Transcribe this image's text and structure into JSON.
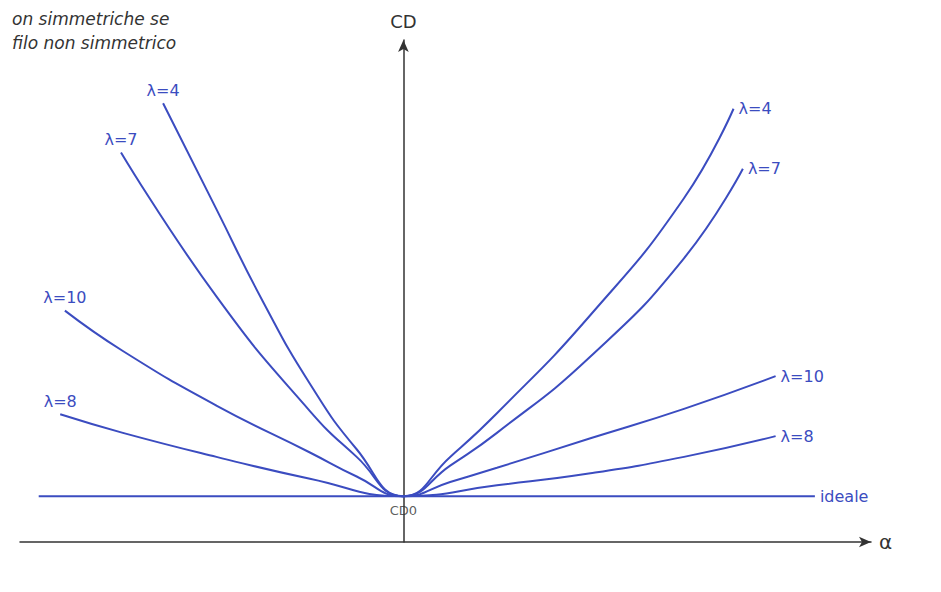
{
  "chart_data": {
    "type": "line",
    "x_label": "α",
    "y_label": "CD",
    "annotations": [
      "on simmetriche se",
      "filo non simmetrico",
      "CD0"
    ],
    "xlim": [
      -41,
      50
    ],
    "ylim": [
      0,
      46
    ],
    "xticks": [],
    "yticks": [],
    "tick_labels": false,
    "grid": false,
    "series": [
      {
        "name": "λ=4",
        "color": "#3b4cc0",
        "x": [
          -25.7,
          -20,
          -15,
          -10,
          -5,
          0,
          5,
          10,
          20,
          30,
          35.3
        ],
        "values": [
          40.2,
          30.5,
          22,
          14.5,
          8.5,
          4.2,
          7.8,
          11.8,
          20.8,
          31.5,
          39.7
        ]
      },
      {
        "name": "λ=7",
        "color": "#3b4cc0",
        "x": [
          -30.2,
          -20,
          -10,
          -5,
          0,
          5,
          10,
          20,
          30,
          36.3
        ],
        "values": [
          35.7,
          22.5,
          12,
          7.8,
          4.2,
          7,
          10,
          17,
          26,
          34.2
        ]
      },
      {
        "name": "λ=10",
        "color": "#3b4cc0",
        "x": [
          -36.2,
          -30,
          -20,
          -10,
          -5,
          0,
          5,
          10,
          20,
          30,
          39.8
        ],
        "values": [
          21.2,
          17.5,
          12.5,
          8.2,
          6,
          4.2,
          5.5,
          6.8,
          9.5,
          12.2,
          15.2
        ]
      },
      {
        "name": "λ=8",
        "color": "#3b4cc0",
        "x": [
          -36.7,
          -30,
          -20,
          -10,
          0,
          10,
          20,
          30,
          39.8
        ],
        "values": [
          11.7,
          10,
          7.8,
          5.8,
          4.2,
          5.2,
          6.3,
          7.8,
          9.7
        ]
      },
      {
        "name": "ideale",
        "color": "#3b4cc0",
        "x": [
          -39,
          44
        ],
        "values": [
          4.2,
          4.2
        ]
      }
    ]
  }
}
